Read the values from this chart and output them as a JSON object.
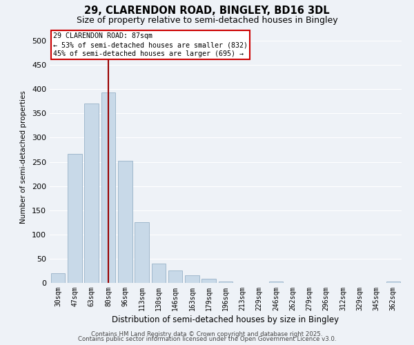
{
  "title": "29, CLARENDON ROAD, BINGLEY, BD16 3DL",
  "subtitle": "Size of property relative to semi-detached houses in Bingley",
  "xlabel": "Distribution of semi-detached houses by size in Bingley",
  "ylabel": "Number of semi-detached properties",
  "annotation_title": "29 CLARENDON ROAD: 87sqm",
  "annotation_line1": "← 53% of semi-detached houses are smaller (832)",
  "annotation_line2": "45% of semi-detached houses are larger (695) →",
  "footnote1": "Contains HM Land Registry data © Crown copyright and database right 2025.",
  "footnote2": "Contains public sector information licensed under the Open Government Licence v3.0.",
  "categories": [
    "30sqm",
    "47sqm",
    "63sqm",
    "80sqm",
    "96sqm",
    "113sqm",
    "130sqm",
    "146sqm",
    "163sqm",
    "179sqm",
    "196sqm",
    "213sqm",
    "229sqm",
    "246sqm",
    "262sqm",
    "279sqm",
    "296sqm",
    "312sqm",
    "329sqm",
    "345sqm",
    "362sqm"
  ],
  "values": [
    20,
    267,
    370,
    393,
    252,
    125,
    40,
    25,
    15,
    8,
    3,
    0,
    0,
    3,
    0,
    0,
    0,
    0,
    0,
    0,
    3
  ],
  "bar_color": "#c8d9e8",
  "bar_edge_color": "#a0b8cc",
  "vline_index": 3,
  "vline_color": "#990000",
  "background_color": "#eef2f7",
  "plot_bg_color": "#eef2f7",
  "grid_color": "#ffffff",
  "ylim": [
    0,
    520
  ],
  "yticks": [
    0,
    50,
    100,
    150,
    200,
    250,
    300,
    350,
    400,
    450,
    500
  ]
}
